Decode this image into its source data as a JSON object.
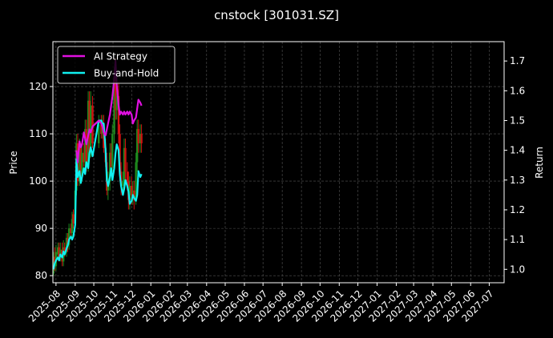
{
  "chart_data": {
    "type": "line",
    "title": "cnstock [301031.SZ]",
    "ylabel_left": "Price",
    "ylabel_right": "Return",
    "xlabel": "",
    "x_range": [
      "2025-07-27",
      "2027-07-25"
    ],
    "ylim_left": [
      78.5,
      129.5
    ],
    "ylim_right": [
      0.955,
      1.765
    ],
    "grid": true,
    "legend_position": "top-left",
    "x_ticks": [
      "2025-08",
      "2025-09",
      "2025-10",
      "2025-11",
      "2025-12",
      "2026-01",
      "2026-02",
      "2026-03",
      "2026-04",
      "2026-05",
      "2026-06",
      "2026-07",
      "2026-08",
      "2026-09",
      "2026-10",
      "2026-11",
      "2026-12",
      "2027-01",
      "2027-02",
      "2027-03",
      "2027-04",
      "2027-05",
      "2027-06",
      "2027-07"
    ],
    "y_ticks_left": [
      80,
      90,
      100,
      110,
      120
    ],
    "y_ticks_right": [
      1.0,
      1.1,
      1.2,
      1.3,
      1.4,
      1.5,
      1.6,
      1.7
    ],
    "colors": {
      "ai_strategy": "#e010e0",
      "buy_and_hold": "#10f0f0",
      "candle_up": "#1e8a1e",
      "candle_down": "#d01010",
      "background": "#000000",
      "grid": "#555555",
      "text": "#ffffff"
    },
    "series": [
      {
        "name": "AI Strategy",
        "axis": "right",
        "dates": [
          "2025-09-03",
          "2025-09-05",
          "2025-09-08",
          "2025-09-10",
          "2025-09-12",
          "2025-09-15",
          "2025-09-17",
          "2025-09-19",
          "2025-09-22",
          "2025-09-24",
          "2025-09-26",
          "2025-09-29",
          "2025-10-09",
          "2025-10-13",
          "2025-10-15",
          "2025-10-17",
          "2025-10-20",
          "2025-10-22",
          "2025-10-24",
          "2025-10-27",
          "2025-10-29",
          "2025-10-31",
          "2025-11-03",
          "2025-11-05",
          "2025-11-07",
          "2025-11-10",
          "2025-11-12",
          "2025-11-14",
          "2025-11-17",
          "2025-11-19",
          "2025-11-21",
          "2025-11-24",
          "2025-11-26",
          "2025-11-28",
          "2025-12-01",
          "2025-12-03",
          "2025-12-05",
          "2025-12-08",
          "2025-12-10",
          "2025-12-12",
          "2025-12-15",
          "2025-12-17"
        ],
        "values": [
          1.4,
          1.36,
          1.43,
          1.41,
          1.42,
          1.46,
          1.44,
          1.42,
          1.45,
          1.47,
          1.46,
          1.48,
          1.5,
          1.49,
          1.48,
          1.46,
          1.45,
          1.47,
          1.49,
          1.52,
          1.55,
          1.58,
          1.64,
          1.7,
          1.62,
          1.55,
          1.52,
          1.53,
          1.52,
          1.53,
          1.52,
          1.53,
          1.52,
          1.53,
          1.52,
          1.49,
          1.5,
          1.51,
          1.54,
          1.57,
          1.56,
          1.55
        ]
      },
      {
        "name": "Buy-and-Hold",
        "axis": "right",
        "dates": [
          "2025-07-28",
          "2025-07-30",
          "2025-08-01",
          "2025-08-04",
          "2025-08-06",
          "2025-08-08",
          "2025-08-11",
          "2025-08-13",
          "2025-08-15",
          "2025-08-18",
          "2025-08-20",
          "2025-08-22",
          "2025-08-25",
          "2025-08-27",
          "2025-08-29",
          "2025-09-01",
          "2025-09-03",
          "2025-09-05",
          "2025-09-08",
          "2025-09-10",
          "2025-09-12",
          "2025-09-15",
          "2025-09-17",
          "2025-09-19",
          "2025-09-22",
          "2025-09-24",
          "2025-09-26",
          "2025-09-29",
          "2025-10-09",
          "2025-10-13",
          "2025-10-15",
          "2025-10-17",
          "2025-10-20",
          "2025-10-22",
          "2025-10-24",
          "2025-10-27",
          "2025-10-29",
          "2025-10-31",
          "2025-11-03",
          "2025-11-05",
          "2025-11-07",
          "2025-11-10",
          "2025-11-12",
          "2025-11-14",
          "2025-11-17",
          "2025-11-19",
          "2025-11-21",
          "2025-11-24",
          "2025-11-26",
          "2025-11-28",
          "2025-12-01",
          "2025-12-03",
          "2025-12-05",
          "2025-12-08",
          "2025-12-10",
          "2025-12-12",
          "2025-12-15",
          "2025-12-17"
        ],
        "values": [
          1.0,
          1.02,
          1.03,
          1.04,
          1.03,
          1.05,
          1.04,
          1.06,
          1.05,
          1.07,
          1.08,
          1.1,
          1.11,
          1.1,
          1.11,
          1.15,
          1.37,
          1.31,
          1.33,
          1.29,
          1.31,
          1.34,
          1.32,
          1.36,
          1.34,
          1.39,
          1.41,
          1.38,
          1.5,
          1.5,
          1.49,
          1.49,
          1.4,
          1.3,
          1.28,
          1.31,
          1.34,
          1.3,
          1.34,
          1.39,
          1.42,
          1.4,
          1.32,
          1.28,
          1.25,
          1.27,
          1.3,
          1.28,
          1.26,
          1.22,
          1.23,
          1.25,
          1.24,
          1.23,
          1.25,
          1.33,
          1.31,
          1.32
        ]
      }
    ],
    "candles": {
      "axis": "left",
      "dates": [
        "2025-07-28",
        "2025-07-30",
        "2025-08-01",
        "2025-08-04",
        "2025-08-06",
        "2025-08-08",
        "2025-08-11",
        "2025-08-13",
        "2025-08-15",
        "2025-08-18",
        "2025-08-20",
        "2025-08-22",
        "2025-08-25",
        "2025-08-27",
        "2025-08-29",
        "2025-09-01",
        "2025-09-03",
        "2025-09-05",
        "2025-09-08",
        "2025-09-10",
        "2025-09-12",
        "2025-09-15",
        "2025-09-17",
        "2025-09-19",
        "2025-09-22",
        "2025-09-24",
        "2025-09-26",
        "2025-09-29",
        "2025-10-09",
        "2025-10-13",
        "2025-10-15",
        "2025-10-17",
        "2025-10-20",
        "2025-10-22",
        "2025-10-24",
        "2025-10-27",
        "2025-10-29",
        "2025-10-31",
        "2025-11-03",
        "2025-11-05",
        "2025-11-07",
        "2025-11-10",
        "2025-11-12",
        "2025-11-14",
        "2025-11-17",
        "2025-11-19",
        "2025-11-21",
        "2025-11-24",
        "2025-11-26",
        "2025-11-28",
        "2025-12-01",
        "2025-12-03",
        "2025-12-05",
        "2025-12-08",
        "2025-12-10",
        "2025-12-12",
        "2025-12-15",
        "2025-12-17"
      ],
      "open": [
        80.5,
        84.0,
        82.0,
        84.5,
        86.0,
        84.0,
        85.5,
        83.0,
        86.0,
        85.0,
        88.0,
        86.5,
        90.0,
        89.0,
        93.0,
        91.0,
        98.0,
        108.0,
        100.0,
        107.0,
        101.0,
        106.0,
        104.0,
        111.0,
        103.0,
        117.0,
        106.0,
        116.0,
        108.0,
        112.0,
        110.0,
        112.0,
        107.0,
        104.0,
        98.0,
        100.0,
        106.0,
        103.0,
        110.0,
        122.0,
        115.0,
        118.0,
        110.0,
        102.0,
        99.0,
        100.0,
        107.0,
        102.0,
        100.0,
        96.0,
        99.0,
        97.0,
        98.0,
        96.0,
        104.0,
        111.0,
        108.0,
        110.0
      ],
      "close": [
        84.0,
        82.0,
        85.0,
        86.0,
        84.0,
        85.5,
        83.0,
        86.0,
        85.0,
        88.0,
        86.5,
        90.0,
        89.0,
        92.0,
        91.0,
        98.0,
        108.0,
        100.0,
        107.0,
        101.0,
        106.0,
        104.0,
        111.0,
        103.0,
        117.0,
        106.0,
        116.0,
        108.0,
        112.0,
        110.0,
        112.0,
        107.0,
        104.0,
        98.0,
        100.0,
        106.0,
        103.0,
        110.0,
        122.0,
        115.0,
        118.0,
        110.0,
        102.0,
        99.0,
        100.0,
        107.0,
        102.0,
        100.0,
        96.0,
        99.0,
        97.0,
        98.0,
        96.0,
        104.0,
        111.0,
        108.0,
        110.0,
        108.0
      ],
      "high": [
        85.0,
        86.0,
        86.5,
        87.0,
        87.0,
        87.0,
        87.0,
        87.5,
        87.0,
        89.0,
        89.0,
        91.0,
        91.0,
        93.5,
        94.0,
        100.0,
        110.0,
        110.0,
        109.0,
        108.0,
        108.0,
        108.0,
        113.0,
        113.0,
        119.0,
        119.0,
        119.0,
        118.0,
        114.0,
        114.0,
        114.0,
        114.0,
        109.0,
        106.0,
        102.0,
        108.0,
        108.0,
        112.0,
        124.0,
        126.0,
        121.0,
        121.0,
        112.0,
        104.0,
        102.0,
        109.0,
        109.0,
        104.0,
        102.0,
        101.0,
        101.0,
        100.0,
        100.0,
        106.0,
        113.0,
        113.0,
        112.0,
        112.0
      ],
      "low": [
        80.0,
        81.0,
        81.0,
        83.5,
        83.0,
        83.0,
        82.0,
        82.0,
        84.0,
        84.0,
        85.0,
        85.5,
        88.0,
        88.0,
        90.0,
        90.0,
        97.0,
        99.0,
        99.0,
        100.0,
        100.0,
        103.0,
        103.0,
        102.0,
        102.0,
        105.0,
        105.0,
        107.0,
        107.0,
        109.0,
        109.0,
        106.0,
        103.0,
        97.0,
        96.0,
        98.0,
        101.0,
        102.0,
        108.0,
        113.0,
        113.0,
        108.0,
        100.0,
        97.0,
        97.0,
        99.0,
        100.0,
        98.0,
        94.0,
        94.0,
        95.0,
        95.0,
        94.0,
        95.0,
        102.0,
        106.0,
        106.0,
        106.0
      ]
    }
  }
}
